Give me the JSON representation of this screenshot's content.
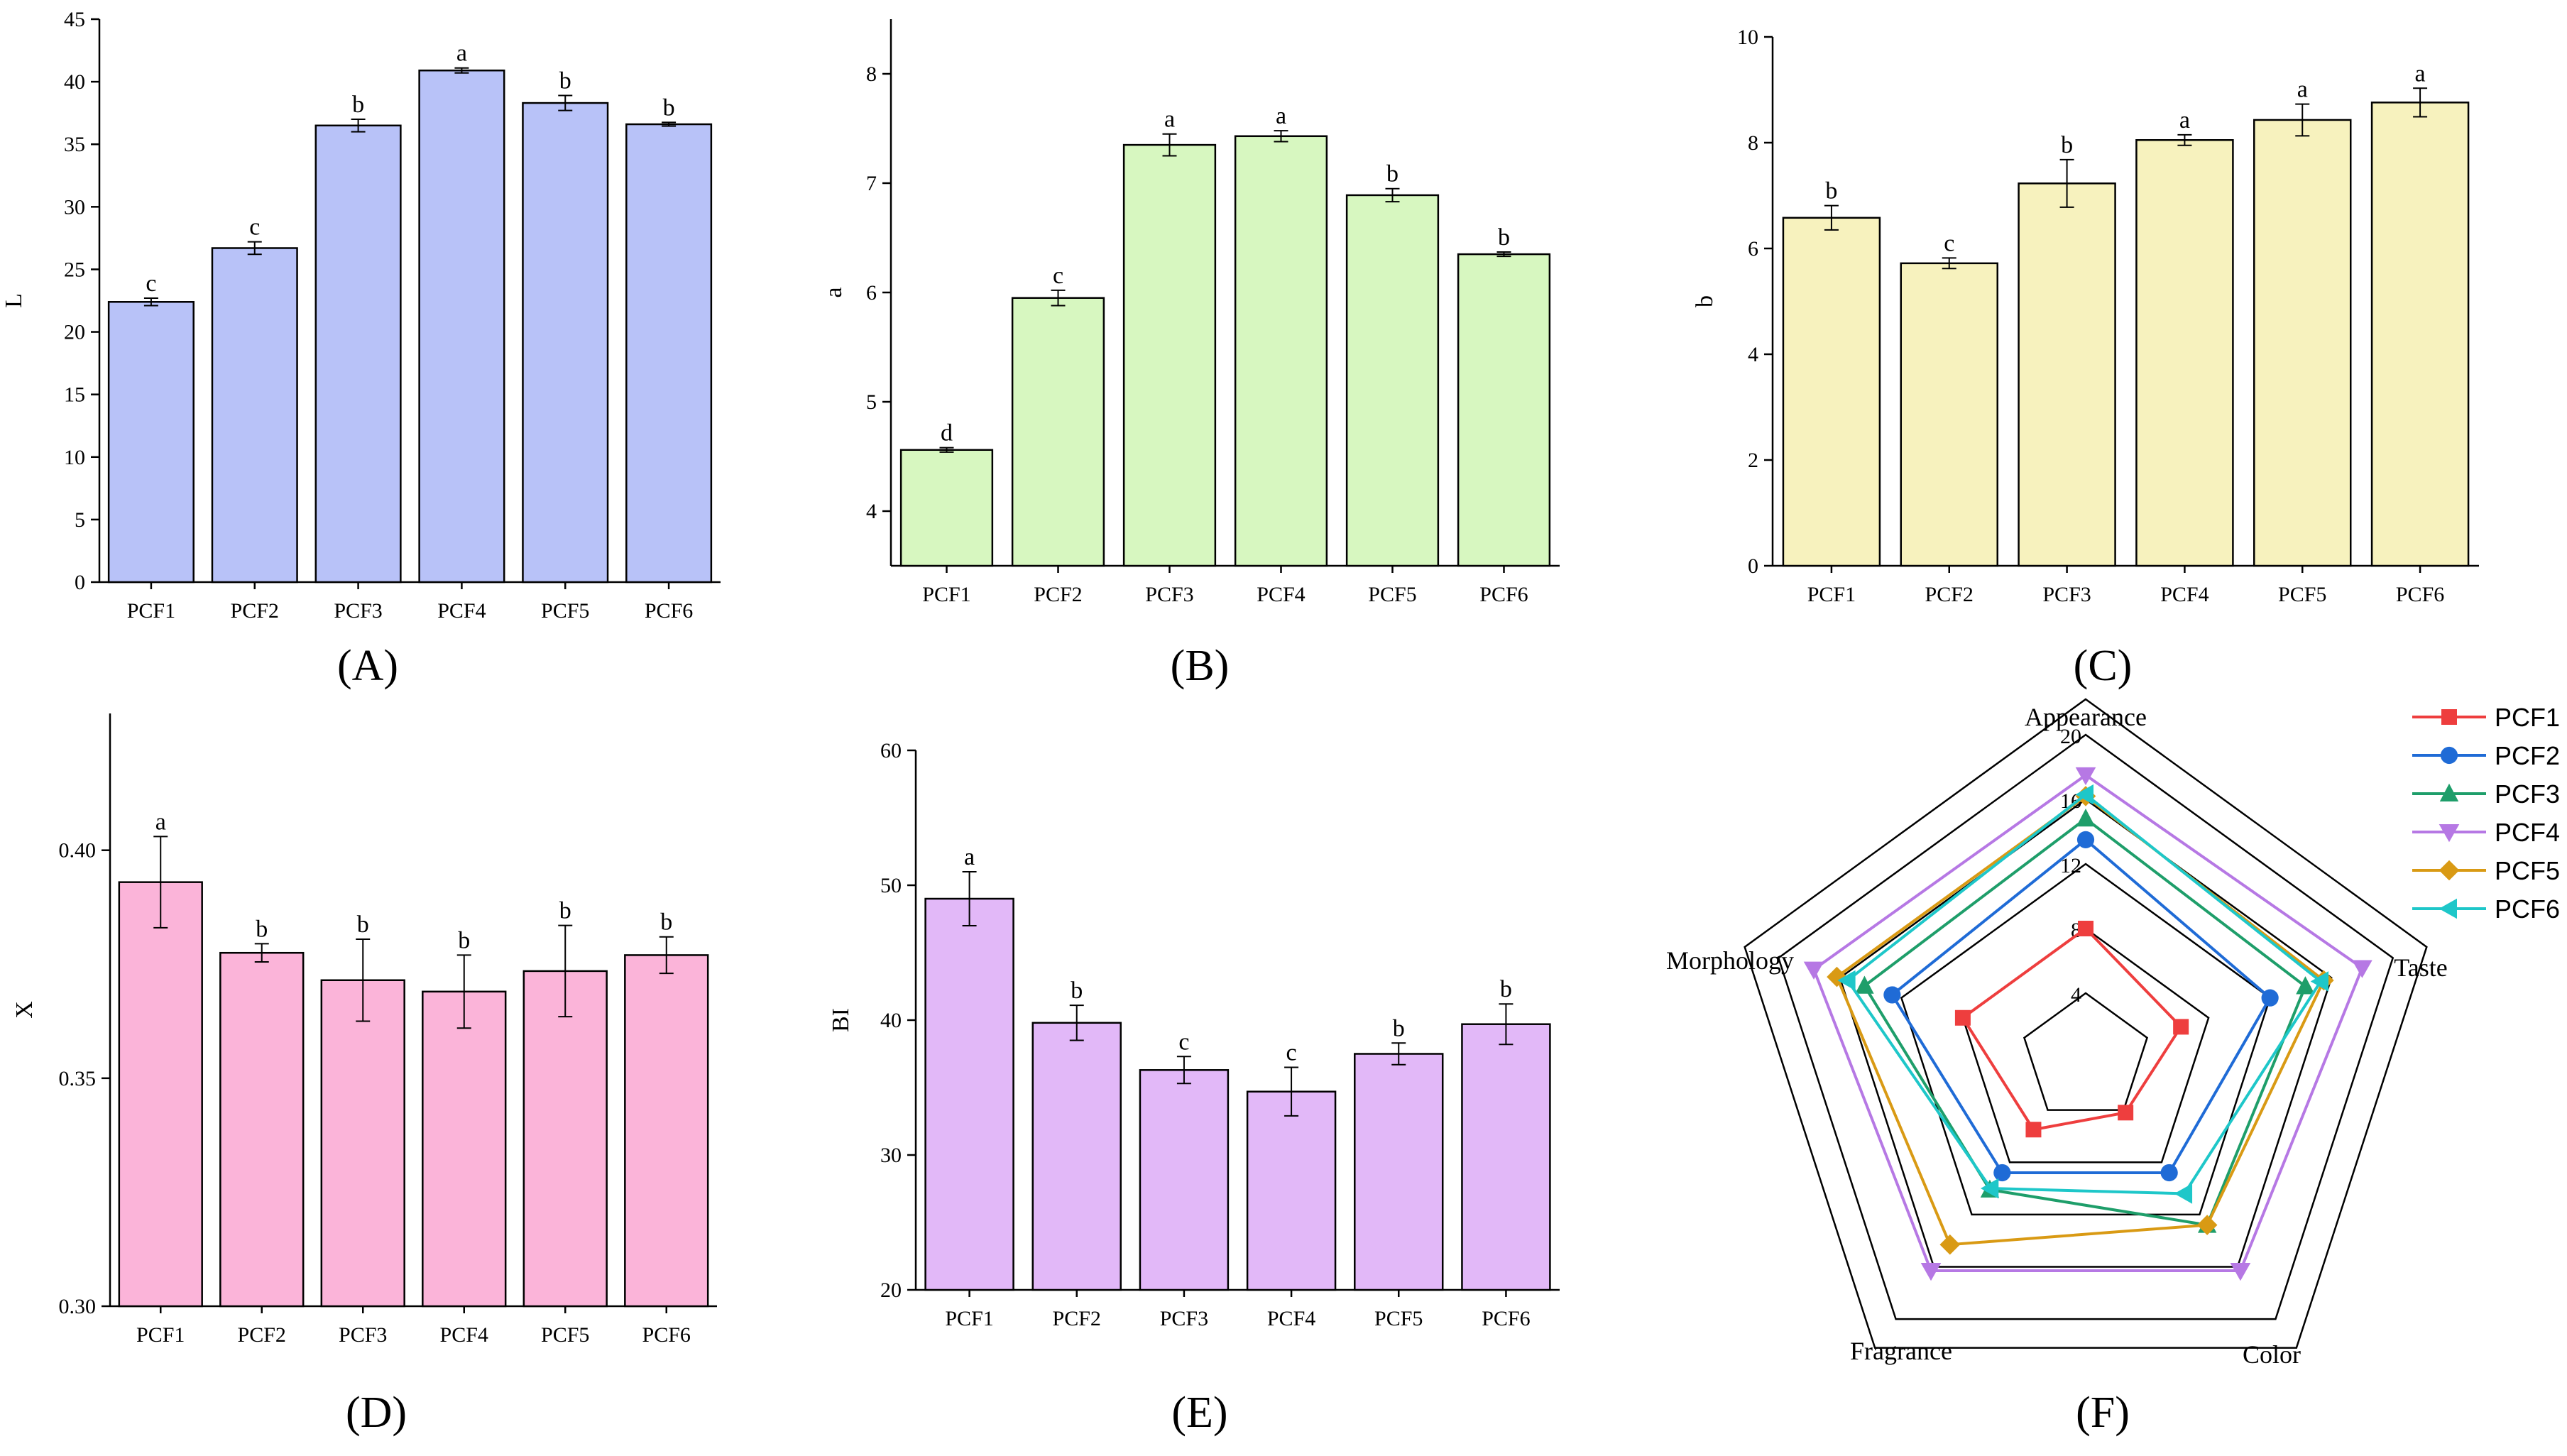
{
  "chart_data": [
    {
      "type": "bar",
      "panel": "A",
      "panel_label": "(A)",
      "color": "#b8c2f8",
      "categories": [
        "PCF1",
        "PCF2",
        "PCF3",
        "PCF4",
        "PCF5",
        "PCF6"
      ],
      "values": [
        22.4,
        26.7,
        36.5,
        40.9,
        38.3,
        36.6
      ],
      "errors": [
        0.3,
        0.5,
        0.5,
        0.2,
        0.6,
        0.15
      ],
      "significance": [
        "c",
        "c",
        "b",
        "a",
        "b",
        "b"
      ],
      "xlabel": "",
      "ylabel": "L",
      "ylim": [
        0,
        45
      ],
      "yticks": [
        0,
        5,
        10,
        15,
        20,
        25,
        30,
        35,
        40,
        45
      ],
      "ytick_labels": [
        "0",
        "5",
        "10",
        "15",
        "20",
        "25",
        "30",
        "35",
        "40",
        "45"
      ]
    },
    {
      "type": "bar",
      "panel": "B",
      "panel_label": "(B)",
      "color": "#d7f7c0",
      "categories": [
        "PCF1",
        "PCF2",
        "PCF3",
        "PCF4",
        "PCF5",
        "PCF6"
      ],
      "values": [
        4.56,
        5.95,
        7.35,
        7.43,
        6.89,
        6.35
      ],
      "errors": [
        0.02,
        0.07,
        0.1,
        0.05,
        0.06,
        0.02
      ],
      "significance": [
        "d",
        "c",
        "a",
        "a",
        "b",
        "b"
      ],
      "xlabel": "",
      "ylabel": "a",
      "ylim": [
        3.5,
        8.5
      ],
      "yticks": [
        4,
        5,
        6,
        7,
        8
      ],
      "ytick_labels": [
        "4",
        "5",
        "6",
        "7",
        "8"
      ]
    },
    {
      "type": "bar",
      "panel": "C",
      "panel_label": "(C)",
      "color": "#f7f2be",
      "categories": [
        "PCF1",
        "PCF2",
        "PCF3",
        "PCF4",
        "PCF5",
        "PCF6"
      ],
      "values": [
        6.58,
        5.72,
        7.23,
        8.05,
        8.43,
        8.76
      ],
      "errors": [
        0.23,
        0.1,
        0.45,
        0.1,
        0.3,
        0.27
      ],
      "significance": [
        "b",
        "c",
        "b",
        "a",
        "a",
        "a"
      ],
      "xlabel": "",
      "ylabel": "b",
      "ylim": [
        0,
        10
      ],
      "yticks": [
        0,
        2,
        4,
        6,
        8,
        10
      ],
      "ytick_labels": [
        "0",
        "2",
        "4",
        "6",
        "8",
        "10"
      ]
    },
    {
      "type": "bar",
      "panel": "D",
      "panel_label": "(D)",
      "color": "#fbb4d9",
      "categories": [
        "PCF1",
        "PCF2",
        "PCF3",
        "PCF4",
        "PCF5",
        "PCF6"
      ],
      "values": [
        0.393,
        0.3775,
        0.3715,
        0.369,
        0.3735,
        0.377
      ],
      "errors": [
        0.01,
        0.002,
        0.009,
        0.008,
        0.01,
        0.004
      ],
      "significance": [
        "a",
        "b",
        "b",
        "b",
        "b",
        "b"
      ],
      "xlabel": "",
      "ylabel": "X",
      "ylim": [
        0.3,
        0.43
      ],
      "yticks": [
        0.3,
        0.35,
        0.4
      ],
      "ytick_labels": [
        "0.30",
        "0.35",
        "0.40"
      ]
    },
    {
      "type": "bar",
      "panel": "E",
      "panel_label": "(E)",
      "color": "#e2b8f8",
      "categories": [
        "PCF1",
        "PCF2",
        "PCF3",
        "PCF4",
        "PCF5",
        "PCF6"
      ],
      "values": [
        49.0,
        39.8,
        36.3,
        34.7,
        37.5,
        39.7
      ],
      "errors": [
        2.0,
        1.3,
        1.0,
        1.8,
        0.8,
        1.5
      ],
      "significance": [
        "a",
        "b",
        "c",
        "c",
        "b",
        "b"
      ],
      "xlabel": "",
      "ylabel": "BI",
      "ylim": [
        20,
        60
      ],
      "yticks": [
        20,
        30,
        40,
        50,
        60
      ],
      "ytick_labels": [
        "20",
        "30",
        "40",
        "50",
        "60"
      ]
    },
    {
      "type": "radar",
      "panel": "F",
      "panel_label": "(F)",
      "axes": [
        "Appearance",
        "Taste",
        "Color",
        "Fragrance",
        "Morphology"
      ],
      "rmax": 20,
      "rings": [
        4,
        8,
        12,
        16,
        20
      ],
      "ring_labels": [
        "4",
        "8",
        "12",
        "16",
        "20"
      ],
      "series": [
        {
          "name": "PCF1",
          "color": "#ee3e3e",
          "marker": "square",
          "values": [
            8.0,
            6.2,
            4.2,
            5.5,
            8.0
          ]
        },
        {
          "name": "PCF2",
          "color": "#1f6bd6",
          "marker": "circle",
          "values": [
            13.5,
            12.0,
            8.8,
            8.8,
            12.6
          ]
        },
        {
          "name": "PCF3",
          "color": "#1e9e6a",
          "marker": "triangle-up",
          "values": [
            14.8,
            14.3,
            12.8,
            10.1,
            14.4
          ]
        },
        {
          "name": "PCF4",
          "color": "#b678e4",
          "marker": "triangle-down",
          "values": [
            17.5,
            18.0,
            16.3,
            16.3,
            17.7
          ]
        },
        {
          "name": "PCF5",
          "color": "#d99a14",
          "marker": "diamond",
          "values": [
            16.2,
            15.5,
            12.8,
            14.3,
            16.2
          ]
        },
        {
          "name": "PCF6",
          "color": "#1ec7c9",
          "marker": "triangle-left",
          "values": [
            16.3,
            15.3,
            10.4,
            10.0,
            15.5
          ]
        }
      ]
    }
  ]
}
